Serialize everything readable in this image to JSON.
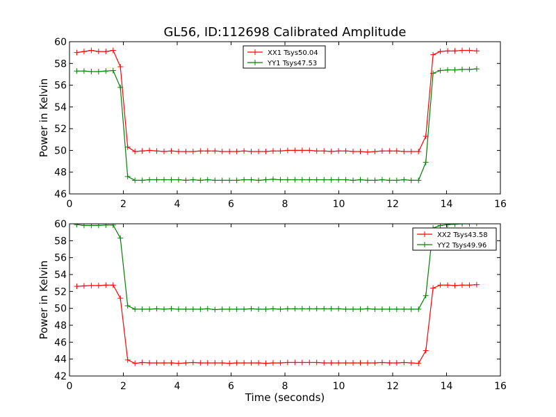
{
  "figure": {
    "title": "GL56, ID:112698 Calibrated Amplitude",
    "xlabel": "Time (seconds)"
  },
  "chart_data": [
    {
      "type": "line",
      "ylabel": "Power in Kelvin",
      "xlim": [
        0,
        16
      ],
      "ylim": [
        46,
        60
      ],
      "xticks": [
        0,
        2,
        4,
        6,
        8,
        10,
        12,
        14,
        16
      ],
      "yticks": [
        46,
        48,
        50,
        52,
        54,
        56,
        58,
        60
      ],
      "grid": false,
      "legend_position": "top-center",
      "x": [
        0.27,
        0.54,
        0.81,
        1.08,
        1.35,
        1.62,
        1.89,
        2.16,
        2.43,
        2.7,
        2.97,
        3.24,
        3.51,
        3.78,
        4.05,
        4.32,
        4.59,
        4.86,
        5.13,
        5.4,
        5.67,
        5.94,
        6.21,
        6.48,
        6.75,
        7.02,
        7.29,
        7.56,
        7.83,
        8.1,
        8.37,
        8.64,
        8.91,
        9.18,
        9.45,
        9.72,
        9.99,
        10.26,
        10.53,
        10.8,
        11.07,
        11.34,
        11.61,
        11.88,
        12.15,
        12.42,
        12.69,
        12.96,
        13.23,
        13.5,
        13.77,
        14.04,
        14.31,
        14.58,
        14.85,
        15.12
      ],
      "series": [
        {
          "name": "XX1 Tsys50.04",
          "color": "#ff0000",
          "values": [
            59.0,
            59.1,
            59.2,
            59.1,
            59.1,
            59.2,
            57.7,
            50.3,
            49.9,
            49.95,
            50.0,
            49.95,
            49.9,
            49.95,
            49.9,
            49.9,
            49.9,
            49.95,
            49.95,
            49.95,
            49.9,
            49.9,
            49.9,
            49.95,
            49.9,
            49.9,
            49.9,
            49.95,
            49.95,
            50.0,
            50.0,
            50.0,
            50.0,
            49.95,
            49.95,
            49.9,
            49.95,
            49.95,
            49.9,
            49.9,
            49.85,
            49.9,
            49.95,
            49.95,
            49.95,
            49.9,
            49.9,
            49.9,
            51.3,
            58.8,
            59.1,
            59.15,
            59.15,
            59.2,
            59.2,
            59.15
          ]
        },
        {
          "name": "YY1 Tsys47.53",
          "color": "#008000",
          "values": [
            57.3,
            57.3,
            57.25,
            57.25,
            57.3,
            57.35,
            55.8,
            47.6,
            47.25,
            47.25,
            47.3,
            47.3,
            47.3,
            47.3,
            47.3,
            47.25,
            47.3,
            47.25,
            47.3,
            47.25,
            47.25,
            47.25,
            47.25,
            47.3,
            47.3,
            47.25,
            47.3,
            47.35,
            47.3,
            47.3,
            47.3,
            47.3,
            47.3,
            47.3,
            47.3,
            47.3,
            47.3,
            47.3,
            47.25,
            47.3,
            47.25,
            47.25,
            47.3,
            47.25,
            47.25,
            47.3,
            47.25,
            47.25,
            48.9,
            57.1,
            57.35,
            57.4,
            57.4,
            57.45,
            57.45,
            57.5
          ]
        }
      ]
    },
    {
      "type": "line",
      "ylabel": "Power in Kelvin",
      "xlabel": "Time (seconds)",
      "xlim": [
        0,
        16
      ],
      "ylim": [
        42,
        60
      ],
      "xticks": [
        0,
        2,
        4,
        6,
        8,
        10,
        12,
        14,
        16
      ],
      "yticks": [
        42,
        44,
        46,
        48,
        50,
        52,
        54,
        56,
        58,
        60
      ],
      "grid": false,
      "legend_position": "top-right",
      "x": [
        0.27,
        0.54,
        0.81,
        1.08,
        1.35,
        1.62,
        1.89,
        2.16,
        2.43,
        2.7,
        2.97,
        3.24,
        3.51,
        3.78,
        4.05,
        4.32,
        4.59,
        4.86,
        5.13,
        5.4,
        5.67,
        5.94,
        6.21,
        6.48,
        6.75,
        7.02,
        7.29,
        7.56,
        7.83,
        8.1,
        8.37,
        8.64,
        8.91,
        9.18,
        9.45,
        9.72,
        9.99,
        10.26,
        10.53,
        10.8,
        11.07,
        11.34,
        11.61,
        11.88,
        12.15,
        12.42,
        12.69,
        12.96,
        13.23,
        13.5,
        13.77,
        14.04,
        14.31,
        14.58,
        14.85,
        15.12
      ],
      "series": [
        {
          "name": "XX2 Tsys43.58",
          "color": "#ff0000",
          "values": [
            52.6,
            52.65,
            52.7,
            52.7,
            52.75,
            52.75,
            51.2,
            43.9,
            43.5,
            43.6,
            43.55,
            43.55,
            43.55,
            43.55,
            43.5,
            43.55,
            43.6,
            43.55,
            43.55,
            43.55,
            43.55,
            43.5,
            43.55,
            43.55,
            43.55,
            43.55,
            43.5,
            43.55,
            43.55,
            43.6,
            43.6,
            43.6,
            43.6,
            43.6,
            43.55,
            43.55,
            43.55,
            43.55,
            43.55,
            43.55,
            43.55,
            43.55,
            43.6,
            43.55,
            43.55,
            43.6,
            43.55,
            43.5,
            45.0,
            52.4,
            52.75,
            52.75,
            52.7,
            52.75,
            52.75,
            52.8
          ]
        },
        {
          "name": "YY2 Tsys49.96",
          "color": "#008000",
          "values": [
            59.9,
            59.8,
            59.8,
            59.8,
            59.85,
            59.85,
            58.3,
            50.3,
            49.9,
            49.9,
            49.9,
            49.95,
            49.9,
            49.95,
            49.9,
            49.9,
            49.9,
            49.9,
            49.95,
            49.85,
            49.9,
            49.9,
            49.9,
            49.9,
            49.95,
            49.9,
            49.9,
            49.95,
            49.9,
            49.95,
            49.95,
            49.95,
            49.95,
            49.95,
            49.95,
            49.95,
            49.95,
            49.9,
            49.9,
            49.9,
            49.95,
            49.9,
            49.9,
            49.9,
            49.9,
            49.9,
            49.9,
            49.9,
            51.5,
            59.5,
            59.8,
            59.9,
            59.95,
            60.0,
            60.0,
            60.05
          ]
        }
      ]
    }
  ]
}
